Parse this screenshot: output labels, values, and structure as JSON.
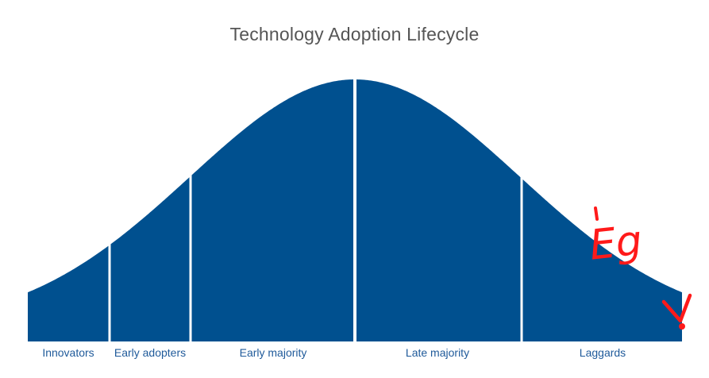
{
  "diagram": {
    "title": "Technology Adoption Lifecycle",
    "segments": [
      {
        "label": "Innovators"
      },
      {
        "label": "Early adopters"
      },
      {
        "label": "Early majority"
      },
      {
        "label": "Late majority"
      },
      {
        "label": "Laggards"
      }
    ],
    "curve_color": "#00508f",
    "annotation": {
      "text": "Eg",
      "color": "#ff0000",
      "marker": "arrow-down-icon"
    }
  }
}
